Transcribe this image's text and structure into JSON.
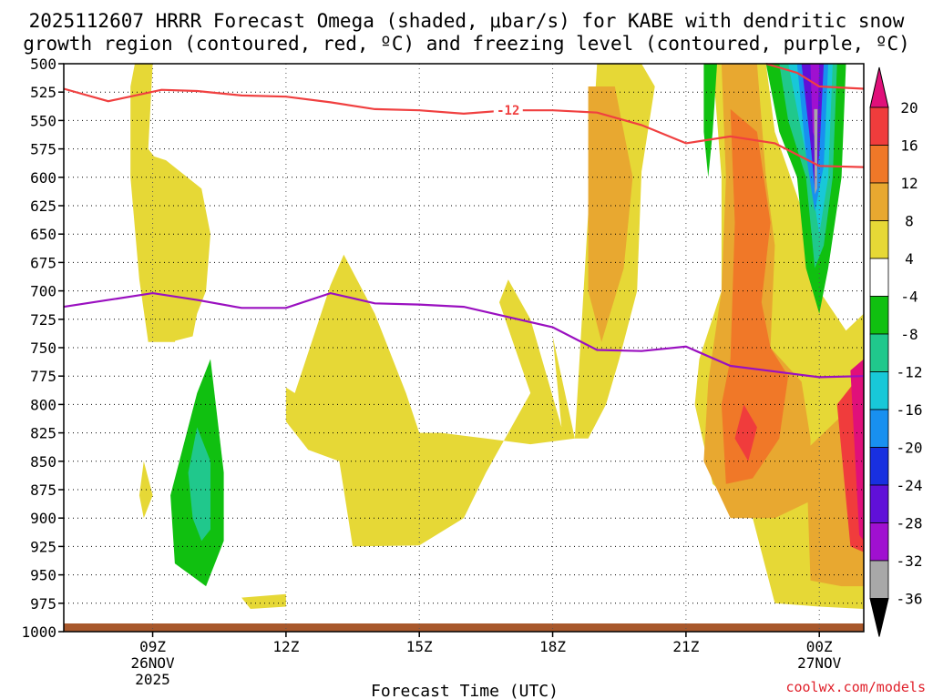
{
  "chart_data": {
    "type": "heatmap",
    "title_line1": "2025112607 HRRR Forecast Omega (shaded, μbar/s) for KABE with dendritic snow",
    "title_line2": "growth region (contoured, red, ºC) and freezing level (contoured, purple, ºC)",
    "xlabel": "Forecast Time (UTC)",
    "credit": "coolwx.com/models",
    "x_unit": "hours since 2025-11-26 07Z",
    "xlim": [
      0,
      18
    ],
    "ylim": [
      500,
      1000
    ],
    "y_ticks": [
      500,
      525,
      550,
      575,
      600,
      625,
      650,
      675,
      700,
      725,
      750,
      775,
      800,
      825,
      850,
      875,
      900,
      925,
      950,
      975,
      1000
    ],
    "x_ticks": [
      {
        "hour": 2,
        "label": "09Z",
        "label2": "26NOV",
        "label3": "2025"
      },
      {
        "hour": 5,
        "label": "12Z",
        "label2": "",
        "label3": ""
      },
      {
        "hour": 8,
        "label": "15Z",
        "label2": "",
        "label3": ""
      },
      {
        "hour": 11,
        "label": "18Z",
        "label2": "",
        "label3": ""
      },
      {
        "hour": 14,
        "label": "21Z",
        "label2": "",
        "label3": ""
      },
      {
        "hour": 17,
        "label": "00Z",
        "label2": "27NOV",
        "label3": ""
      }
    ],
    "colorbar": {
      "labels": [
        "20",
        "16",
        "12",
        "8",
        "4",
        "-4",
        "-8",
        "-12",
        "-16",
        "-20",
        "-24",
        "-28",
        "-32",
        "-36"
      ],
      "bins": [
        {
          "from": 16,
          "to": 20,
          "color": "#f03c3c"
        },
        {
          "from": 12,
          "to": 16,
          "color": "#f07828"
        },
        {
          "from": 8,
          "to": 12,
          "color": "#e8a830"
        },
        {
          "from": 4,
          "to": 8,
          "color": "#e6d836"
        },
        {
          "from": -4,
          "to": 4,
          "color": "#ffffff"
        },
        {
          "from": -8,
          "to": -4,
          "color": "#10c010"
        },
        {
          "from": -12,
          "to": -8,
          "color": "#20c88c"
        },
        {
          "from": -16,
          "to": -12,
          "color": "#18c8d8"
        },
        {
          "from": -20,
          "to": -16,
          "color": "#1890f0"
        },
        {
          "from": -24,
          "to": -20,
          "color": "#1830e0"
        },
        {
          "from": -28,
          "to": -24,
          "color": "#6010d8"
        },
        {
          "from": -32,
          "to": -28,
          "color": "#a010d0"
        },
        {
          "from": -36,
          "to": -32,
          "color": "#a8a8a8"
        }
      ],
      "over_color": "#e0107a",
      "under_color": "#000000"
    },
    "series": [
      {
        "name": "dendritic growth region -12C (top)",
        "color": "#f04040",
        "label": "-12",
        "label_at": {
          "hour": 10.0,
          "pressure": 541
        },
        "points": [
          [
            0,
            522
          ],
          [
            1,
            533
          ],
          [
            2.2,
            523
          ],
          [
            3,
            524
          ],
          [
            4,
            528
          ],
          [
            5,
            529
          ],
          [
            6,
            534
          ],
          [
            7,
            540
          ],
          [
            8,
            541
          ],
          [
            9,
            544
          ],
          [
            10,
            541
          ],
          [
            11,
            541
          ],
          [
            12,
            543
          ],
          [
            13,
            554
          ],
          [
            14,
            570
          ],
          [
            15,
            564
          ],
          [
            16,
            570
          ],
          [
            17,
            590
          ],
          [
            18,
            591
          ]
        ]
      },
      {
        "name": "dendritic growth region (bottom)",
        "color": "#f04040",
        "points": [
          [
            15.8,
            500
          ],
          [
            16.5,
            508
          ],
          [
            17,
            520
          ],
          [
            18,
            522
          ]
        ]
      },
      {
        "name": "freezing level 0C",
        "color": "#9a10c0",
        "points": [
          [
            0,
            714
          ],
          [
            1,
            708
          ],
          [
            2,
            702
          ],
          [
            3,
            708
          ],
          [
            4,
            715
          ],
          [
            5,
            715
          ],
          [
            6,
            702
          ],
          [
            7,
            711
          ],
          [
            8,
            712
          ],
          [
            9,
            714
          ],
          [
            10,
            723
          ],
          [
            11,
            732
          ],
          [
            12,
            752
          ],
          [
            13,
            753
          ],
          [
            14,
            749
          ],
          [
            15,
            766
          ],
          [
            16,
            771
          ],
          [
            17,
            776
          ],
          [
            18,
            775
          ]
        ]
      }
    ],
    "shaded_regions": [
      {
        "bin": "4 to 8",
        "points": [
          [
            1.6,
            500
          ],
          [
            2.0,
            500
          ],
          [
            1.9,
            575
          ],
          [
            2.3,
            595
          ],
          [
            2.2,
            650
          ],
          [
            2.8,
            700
          ],
          [
            2.5,
            745
          ],
          [
            1.9,
            745
          ],
          [
            1.7,
            690
          ],
          [
            1.5,
            600
          ],
          [
            1.5,
            520
          ]
        ]
      },
      {
        "bin": "4 to 8",
        "points": [
          [
            1.9,
            580
          ],
          [
            2.3,
            585
          ],
          [
            3.1,
            610
          ],
          [
            3.3,
            650
          ],
          [
            3.2,
            700
          ],
          [
            3.0,
            720
          ],
          [
            2.9,
            740
          ],
          [
            2.4,
            745
          ],
          [
            2.2,
            700
          ],
          [
            1.9,
            640
          ]
        ]
      },
      {
        "bin": "4 to 8",
        "points": [
          [
            5.2,
            790
          ],
          [
            6.0,
            695
          ],
          [
            6.3,
            668
          ],
          [
            7.0,
            720
          ],
          [
            7.7,
            790
          ],
          [
            8.0,
            825
          ],
          [
            8.5,
            825
          ],
          [
            9.5,
            830
          ],
          [
            10.5,
            835
          ],
          [
            11.5,
            830
          ],
          [
            11.0,
            740
          ],
          [
            11.2,
            820
          ],
          [
            10.5,
            725
          ],
          [
            10.0,
            690
          ],
          [
            9.8,
            710
          ],
          [
            10.5,
            790
          ],
          [
            9.5,
            860
          ],
          [
            9.0,
            900
          ],
          [
            8.0,
            924
          ],
          [
            6.5,
            925
          ],
          [
            6.2,
            850
          ],
          [
            5.5,
            840
          ],
          [
            5.0,
            815
          ],
          [
            5.0,
            785
          ]
        ]
      },
      {
        "bin": "4 to 8",
        "points": [
          [
            11.5,
            830
          ],
          [
            12.0,
            500
          ],
          [
            13.0,
            500
          ],
          [
            13.3,
            520
          ],
          [
            13.0,
            595
          ],
          [
            12.9,
            700
          ],
          [
            12.5,
            760
          ],
          [
            12.2,
            800
          ],
          [
            11.8,
            830
          ]
        ]
      },
      {
        "bin": "4 to 8",
        "points": [
          [
            1.8,
            850
          ],
          [
            2.0,
            880
          ],
          [
            1.8,
            900
          ],
          [
            1.7,
            880
          ]
        ]
      },
      {
        "bin": "4 to 8",
        "points": [
          [
            4.0,
            970
          ],
          [
            5.0,
            967
          ],
          [
            5.0,
            978
          ],
          [
            4.2,
            980
          ]
        ]
      },
      {
        "bin": "4 to 8",
        "points": [
          [
            14.6,
            500
          ],
          [
            15.8,
            500
          ],
          [
            16.0,
            560
          ],
          [
            16.8,
            650
          ],
          [
            17.0,
            700
          ],
          [
            17.6,
            735
          ],
          [
            18,
            720
          ],
          [
            18,
            980
          ],
          [
            17.0,
            978
          ],
          [
            16.0,
            975
          ],
          [
            15.5,
            900
          ],
          [
            14.6,
            870
          ],
          [
            14.2,
            800
          ],
          [
            14.3,
            760
          ],
          [
            14.8,
            700
          ],
          [
            14.8,
            600
          ]
        ]
      },
      {
        "bin": "8 to 12",
        "points": [
          [
            11.8,
            520
          ],
          [
            12.4,
            520
          ],
          [
            12.8,
            600
          ],
          [
            12.6,
            680
          ],
          [
            12.1,
            745
          ],
          [
            11.8,
            700
          ]
        ]
      },
      {
        "bin": "8 to 12",
        "points": [
          [
            14.8,
            500
          ],
          [
            15.6,
            500
          ],
          [
            15.8,
            600
          ],
          [
            16.0,
            660
          ],
          [
            15.9,
            750
          ],
          [
            16.6,
            780
          ],
          [
            16.8,
            830
          ],
          [
            16.8,
            885
          ],
          [
            16.0,
            900
          ],
          [
            15.0,
            900
          ],
          [
            14.4,
            850
          ],
          [
            14.5,
            780
          ],
          [
            14.8,
            700
          ],
          [
            14.9,
            600
          ]
        ]
      },
      {
        "bin": "8 to 12",
        "points": [
          [
            16.7,
            840
          ],
          [
            17.5,
            810
          ],
          [
            18,
            790
          ],
          [
            18,
            960
          ],
          [
            17.5,
            960
          ],
          [
            16.8,
            955
          ]
        ]
      },
      {
        "bin": "12 to 16",
        "points": [
          [
            15.0,
            540
          ],
          [
            15.6,
            560
          ],
          [
            15.9,
            640
          ],
          [
            15.7,
            710
          ],
          [
            15.9,
            750
          ],
          [
            16.3,
            775
          ],
          [
            16.1,
            830
          ],
          [
            15.5,
            865
          ],
          [
            14.9,
            870
          ],
          [
            14.8,
            800
          ],
          [
            15.0,
            760
          ],
          [
            15.1,
            640
          ]
        ]
      },
      {
        "bin": "16 to 20",
        "points": [
          [
            15.3,
            800
          ],
          [
            15.6,
            820
          ],
          [
            15.4,
            850
          ],
          [
            15.1,
            830
          ]
        ]
      },
      {
        "bin": "16 to 20",
        "points": [
          [
            17.4,
            800
          ],
          [
            18,
            770
          ],
          [
            18,
            930
          ],
          [
            17.7,
            925
          ]
        ]
      },
      {
        "bin": ">20",
        "points": [
          [
            17.7,
            770
          ],
          [
            18,
            760
          ],
          [
            18,
            920
          ],
          [
            17.9,
            915
          ]
        ]
      },
      {
        "bin": "-8 to -4",
        "points": [
          [
            2.4,
            880
          ],
          [
            3.0,
            790
          ],
          [
            3.3,
            760
          ],
          [
            3.6,
            860
          ],
          [
            3.6,
            920
          ],
          [
            3.2,
            960
          ],
          [
            2.5,
            940
          ]
        ]
      },
      {
        "bin": "-12 to -8",
        "points": [
          [
            2.8,
            860
          ],
          [
            3.0,
            820
          ],
          [
            3.3,
            850
          ],
          [
            3.3,
            910
          ],
          [
            3.1,
            920
          ],
          [
            2.9,
            900
          ]
        ]
      },
      {
        "bin": "-8 to -4",
        "points": [
          [
            14.4,
            500
          ],
          [
            14.7,
            500
          ],
          [
            14.6,
            560
          ],
          [
            14.5,
            600
          ],
          [
            14.4,
            560
          ]
        ]
      },
      {
        "bin": "-8 to -4",
        "points": [
          [
            15.8,
            500
          ],
          [
            16.5,
            500
          ],
          [
            17.1,
            500
          ],
          [
            17.6,
            500
          ],
          [
            17.5,
            600
          ],
          [
            17.2,
            680
          ],
          [
            17.0,
            720
          ],
          [
            16.7,
            680
          ],
          [
            16.5,
            600
          ],
          [
            16.1,
            560
          ]
        ]
      },
      {
        "bin": "-12 to -8",
        "points": [
          [
            16.1,
            500
          ],
          [
            16.7,
            500
          ],
          [
            17.4,
            500
          ],
          [
            17.3,
            600
          ],
          [
            17.1,
            660
          ],
          [
            16.9,
            680
          ],
          [
            16.7,
            600
          ],
          [
            16.3,
            550
          ]
        ]
      },
      {
        "bin": "-16 to -12",
        "points": [
          [
            16.3,
            500
          ],
          [
            17.3,
            500
          ],
          [
            17.2,
            600
          ],
          [
            17.0,
            650
          ],
          [
            16.8,
            600
          ],
          [
            16.5,
            540
          ]
        ]
      },
      {
        "bin": "-20 to -16",
        "points": [
          [
            16.5,
            500
          ],
          [
            17.2,
            500
          ],
          [
            17.1,
            590
          ],
          [
            16.9,
            630
          ],
          [
            16.7,
            580
          ]
        ]
      },
      {
        "bin": "-28 to -24",
        "points": [
          [
            16.6,
            500
          ],
          [
            17.1,
            500
          ],
          [
            17.0,
            580
          ],
          [
            16.9,
            610
          ],
          [
            16.8,
            570
          ]
        ]
      },
      {
        "bin": "-32 to -28",
        "points": [
          [
            16.8,
            500
          ],
          [
            17.0,
            500
          ],
          [
            16.95,
            570
          ],
          [
            16.85,
            560
          ]
        ]
      },
      {
        "bin": "-36 to -32",
        "points": [
          [
            16.88,
            540
          ],
          [
            16.96,
            540
          ],
          [
            16.95,
            610
          ],
          [
            16.9,
            615
          ]
        ]
      }
    ]
  }
}
